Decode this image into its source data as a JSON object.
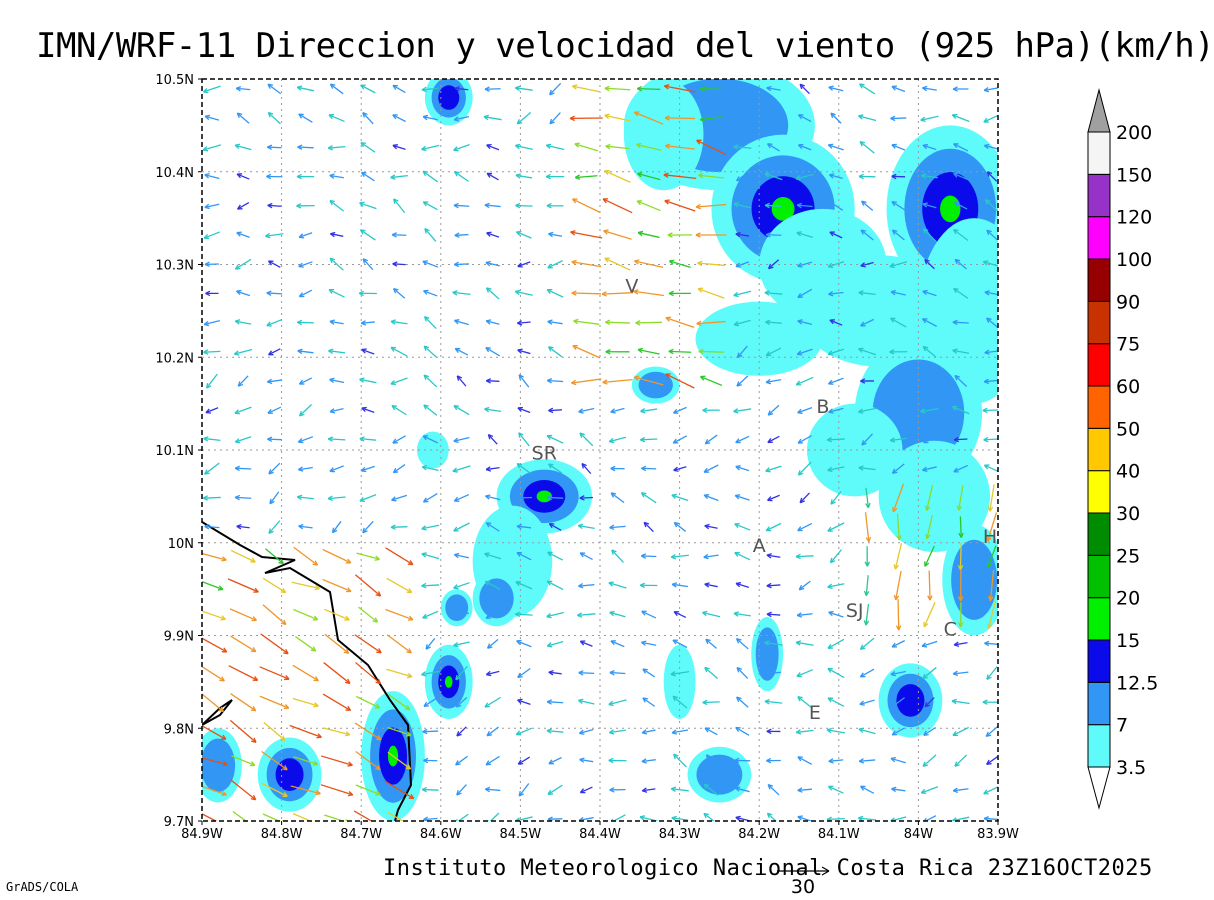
{
  "title": "IMN/WRF-11 Direccion y velocidad del viento (925 hPa)(km/h)",
  "footer": "Instituto Meteorologico Nacional Costa Rica 23Z16OCT2025",
  "credit": "GrADS/COLA",
  "reference_vector_label": "30",
  "map": {
    "lon_range": [
      -84.9,
      -83.9
    ],
    "lat_range": [
      9.7,
      10.5
    ],
    "x_ticks": [
      "84.9W",
      "84.8W",
      "84.7W",
      "84.6W",
      "84.5W",
      "84.4W",
      "84.3W",
      "84.2W",
      "84.1W",
      "84W",
      "83.9W"
    ],
    "y_ticks": [
      "10.5N",
      "10.4N",
      "10.3N",
      "10.2N",
      "10.1N",
      "10N",
      "9.9N",
      "9.8N",
      "9.7N"
    ],
    "city_labels": [
      {
        "text": "V",
        "lon": -84.36,
        "lat": 10.27
      },
      {
        "text": "SR",
        "lon": -84.47,
        "lat": 10.09
      },
      {
        "text": "B",
        "lon": -84.12,
        "lat": 10.14
      },
      {
        "text": "A",
        "lon": -84.2,
        "lat": 9.99
      },
      {
        "text": "SJ",
        "lon": -84.08,
        "lat": 9.92
      },
      {
        "text": "H",
        "lon": -83.91,
        "lat": 10.0
      },
      {
        "text": "C",
        "lon": -83.96,
        "lat": 9.9
      },
      {
        "text": "E",
        "lon": -84.13,
        "lat": 9.81
      }
    ]
  },
  "colorbar": {
    "labels": [
      "3.5",
      "7",
      "12.5",
      "15",
      "20",
      "25",
      "30",
      "40",
      "50",
      "60",
      "75",
      "90",
      "100",
      "120",
      "150",
      "200"
    ],
    "colors": [
      "#5ffbfb",
      "#3296f5",
      "#0a0aeb",
      "#00f000",
      "#00c000",
      "#008c00",
      "#ffff00",
      "#ffc800",
      "#ff6400",
      "#ff0000",
      "#c83200",
      "#960000",
      "#ff00ff",
      "#9632c8",
      "#f5f5f5",
      "#a0a0a0"
    ]
  }
}
